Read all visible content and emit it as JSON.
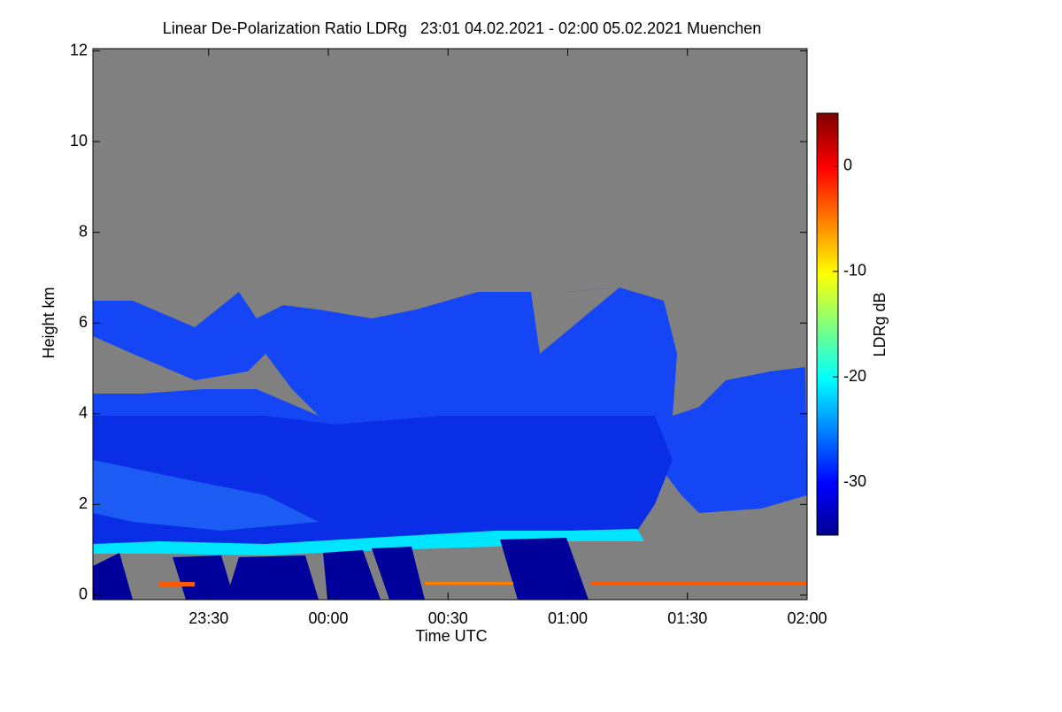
{
  "chart_data": {
    "type": "heatmap",
    "title": "Linear De-Polarization Ratio LDRg   23:01 04.02.2021 - 02:00 05.02.2021 Muenchen",
    "x_label": "Time UTC",
    "y_label": "Height km",
    "colorbar_label": "LDRg dB",
    "colormap": "jet",
    "xlim": [
      -59,
      120
    ],
    "xticks": [
      {
        "value": -30,
        "label": "23:30"
      },
      {
        "value": 0,
        "label": "00:00"
      },
      {
        "value": 30,
        "label": "00:30"
      },
      {
        "value": 60,
        "label": "01:00"
      },
      {
        "value": 90,
        "label": "01:30"
      },
      {
        "value": 120,
        "label": "02:00"
      }
    ],
    "ylim": [
      -0.1,
      12.05
    ],
    "yticks": [
      0,
      2,
      4,
      6,
      8,
      10,
      12
    ],
    "clim": [
      -35,
      5
    ],
    "cticks": [
      0,
      -10,
      -20,
      -30
    ]
  }
}
